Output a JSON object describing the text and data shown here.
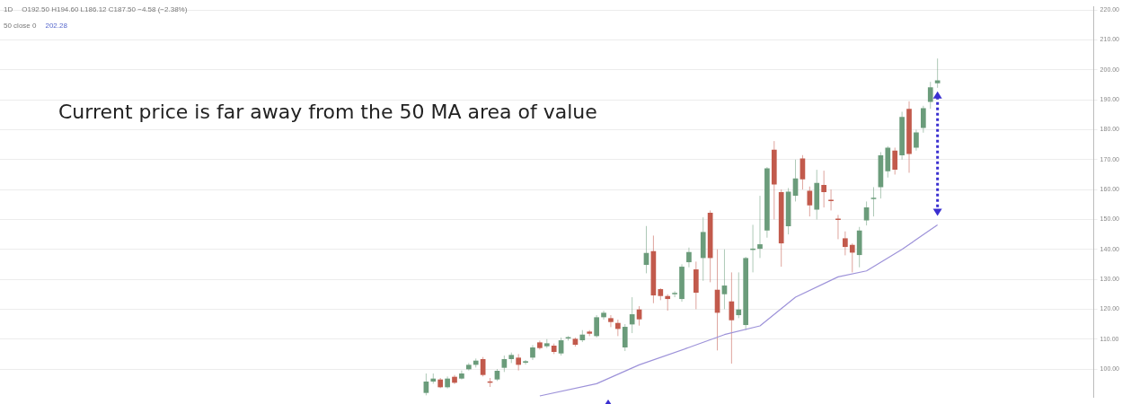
{
  "chart_data": {
    "type": "candlestick",
    "categories": [
      null,
      null,
      null,
      null,
      null,
      null,
      null,
      null,
      null,
      null,
      null,
      null,
      null,
      null,
      null,
      null,
      null,
      null,
      null,
      null,
      null,
      null,
      null,
      null,
      null,
      null,
      null,
      null,
      null,
      null,
      null,
      null,
      null,
      null,
      null,
      null,
      null,
      null,
      null,
      null,
      null,
      null,
      null,
      null,
      null,
      null,
      null,
      null,
      null,
      null,
      null,
      null,
      null,
      null,
      null,
      null,
      null,
      null,
      null,
      null,
      null,
      null,
      null,
      null,
      null,
      null,
      null,
      null,
      null,
      null,
      null,
      null,
      null,
      null,
      null,
      null,
      null,
      null,
      null,
      null,
      null,
      null,
      null,
      null,
      null,
      null,
      null,
      null,
      null,
      null,
      null,
      null,
      null,
      null,
      null,
      null,
      null,
      null,
      null,
      null,
      null,
      null,
      null,
      null,
      null,
      null,
      null,
      null,
      null,
      null,
      null,
      null,
      null,
      null,
      null,
      null,
      null,
      null,
      null,
      null,
      null,
      null,
      null,
      null,
      null,
      null,
      null,
      null,
      null,
      null,
      null,
      null,
      null,
      null,
      null,
      null,
      null,
      null,
      null,
      null,
      null,
      null,
      null,
      null,
      null,
      null,
      null,
      null,
      null,
      null,
      null,
      null,
      null,
      null,
      null
    ],
    "ohlc": [
      null,
      null,
      null,
      null,
      null,
      null,
      null,
      null,
      null,
      null,
      null,
      null,
      null,
      null,
      null,
      null,
      null,
      null,
      null,
      null,
      null,
      null,
      null,
      null,
      null,
      null,
      null,
      null,
      null,
      null,
      null,
      null,
      null,
      null,
      null,
      null,
      null,
      null,
      null,
      null,
      null,
      null,
      null,
      null,
      null,
      null,
      null,
      null,
      null,
      null,
      null,
      null,
      null,
      null,
      null,
      null,
      null,
      null,
      null,
      null,
      [
        92.0,
        98.5,
        91.2,
        95.8
      ],
      [
        95.8,
        98.5,
        95.1,
        96.8
      ],
      [
        96.5,
        97.0,
        93.6,
        93.9
      ],
      [
        93.9,
        97.5,
        93.5,
        96.8
      ],
      [
        97.4,
        98.0,
        95.0,
        95.4
      ],
      [
        96.8,
        99.5,
        96.5,
        98.5
      ],
      [
        99.9,
        102.0,
        99.5,
        101.4
      ],
      [
        101.4,
        103.5,
        100.5,
        102.8
      ],
      [
        103.3,
        104.0,
        97.5,
        98.0
      ],
      [
        95.8,
        97.0,
        94.0,
        95.4
      ],
      [
        96.5,
        100.0,
        96.0,
        99.4
      ],
      [
        100.4,
        104.5,
        99.0,
        103.3
      ],
      [
        103.3,
        105.5,
        102.0,
        104.7
      ],
      [
        103.8,
        105.0,
        99.5,
        101.4
      ],
      [
        102.1,
        103.0,
        101.5,
        102.6
      ],
      [
        103.8,
        108.0,
        103.0,
        107.2
      ],
      [
        108.9,
        109.5,
        106.5,
        107.0
      ],
      [
        107.6,
        110.0,
        107.0,
        108.6
      ],
      [
        107.8,
        108.5,
        105.0,
        105.7
      ],
      [
        105.2,
        110.5,
        104.5,
        109.6
      ],
      [
        110.2,
        111.0,
        109.5,
        110.3
      ],
      [
        110.1,
        110.5,
        107.5,
        108.1
      ],
      [
        109.6,
        113.0,
        109.0,
        111.5
      ],
      [
        112.5,
        113.0,
        111.0,
        111.8
      ],
      [
        111.0,
        118.0,
        110.5,
        117.3
      ],
      [
        117.3,
        119.5,
        116.5,
        118.8
      ],
      [
        117.0,
        118.0,
        114.0,
        115.7
      ],
      [
        115.4,
        116.5,
        111.0,
        113.4
      ],
      [
        107.2,
        115.0,
        106.0,
        114.1
      ],
      [
        114.9,
        124.0,
        112.0,
        118.3
      ],
      [
        119.9,
        121.0,
        114.5,
        116.6
      ],
      [
        134.8,
        147.8,
        132.0,
        138.8
      ],
      [
        139.4,
        144.6,
        122.0,
        124.6
      ],
      [
        126.7,
        127.0,
        123.0,
        124.4
      ],
      [
        124.4,
        125.0,
        119.5,
        123.4
      ],
      [
        125.0,
        126.0,
        124.0,
        125.3
      ],
      [
        123.4,
        135.0,
        122.5,
        134.2
      ],
      [
        135.7,
        140.6,
        134.0,
        139.1
      ],
      [
        133.3,
        135.9,
        120.0,
        125.5
      ],
      [
        137.1,
        150.7,
        129.5,
        145.8
      ],
      [
        152.2,
        153.0,
        129.0,
        137.1
      ],
      [
        126.5,
        140.0,
        106.2,
        118.8
      ],
      [
        125.0,
        140.0,
        120.0,
        127.9
      ],
      [
        122.6,
        132.3,
        101.8,
        116.3
      ],
      [
        118.0,
        132.3,
        117.0,
        119.9
      ],
      [
        114.7,
        137.5,
        113.0,
        137.1
      ],
      [
        139.8,
        148.2,
        132.3,
        140.1
      ],
      [
        140.2,
        157.9,
        137.1,
        141.7
      ],
      [
        146.3,
        167.5,
        143.9,
        167.1
      ],
      [
        173.3,
        176.2,
        150.0,
        161.7
      ],
      [
        159.1,
        160.0,
        134.2,
        142.0
      ],
      [
        147.7,
        160.5,
        145.0,
        159.3
      ],
      [
        157.9,
        170.0,
        156.0,
        163.7
      ],
      [
        170.4,
        171.5,
        160.0,
        163.4
      ],
      [
        159.6,
        161.0,
        151.0,
        154.7
      ],
      [
        153.3,
        166.6,
        150.0,
        162.2
      ],
      [
        161.5,
        166.3,
        154.0,
        159.1
      ],
      [
        156.2,
        160.0,
        153.0,
        156.1
      ],
      [
        149.9,
        151.5,
        143.4,
        149.8
      ],
      [
        143.7,
        146.0,
        138.0,
        140.8
      ],
      [
        141.5,
        142.0,
        132.3,
        138.9
      ],
      [
        138.1,
        147.5,
        134.0,
        146.3
      ],
      [
        149.7,
        156.0,
        148.0,
        154.0
      ],
      [
        156.8,
        160.8,
        151.0,
        156.9
      ],
      [
        160.8,
        172.5,
        157.0,
        171.4
      ],
      [
        166.1,
        174.5,
        164.0,
        174.0
      ],
      [
        173.0,
        174.0,
        165.0,
        166.6
      ],
      [
        171.4,
        186.0,
        170.0,
        184.3
      ],
      [
        187.0,
        189.5,
        165.6,
        171.9
      ],
      [
        174.0,
        180.0,
        173.0,
        179.1
      ],
      [
        180.6,
        188.0,
        179.0,
        187.2
      ],
      [
        189.3,
        196.0,
        187.0,
        194.2
      ],
      [
        195.5,
        203.8,
        194.0,
        196.5
      ],
      null,
      null,
      null,
      null,
      null,
      null,
      null,
      null,
      null,
      null,
      null,
      null,
      null,
      null,
      null,
      null,
      null,
      null,
      null,
      null,
      null,
      null
    ],
    "colors": [
      null,
      null,
      null,
      null,
      null,
      null,
      null,
      null,
      null,
      null,
      null,
      null,
      null,
      null,
      null,
      null,
      null,
      null,
      null,
      null,
      null,
      null,
      null,
      null,
      null,
      null,
      null,
      null,
      null,
      null,
      null,
      null,
      null,
      null,
      null,
      null,
      null,
      null,
      null,
      null,
      null,
      null,
      null,
      null,
      null,
      null,
      null,
      null,
      null,
      null,
      null,
      null,
      null,
      null,
      null,
      null,
      null,
      null,
      null,
      null,
      "#6b9c7b",
      "#6b9c7b",
      "#c25a4c",
      "#6b9c7b",
      "#c25a4c",
      "#6b9c7b",
      "#6b9c7b",
      "#6b9c7b",
      "#c25a4c",
      "#c25a4c",
      "#6b9c7b",
      "#6b9c7b",
      "#6b9c7b",
      "#c25a4c",
      "#6b9c7b",
      "#6b9c7b",
      "#c25a4c",
      "#6b9c7b",
      "#c25a4c",
      "#6b9c7b",
      "#6b9c7b",
      "#c25a4c",
      "#6b9c7b",
      "#c25a4c",
      "#6b9c7b",
      "#6b9c7b",
      "#c25a4c",
      "#c25a4c",
      "#6b9c7b",
      "#6b9c7b",
      "#c25a4c",
      "#6b9c7b",
      "#c25a4c",
      "#c25a4c",
      "#c25a4c",
      "#6b9c7b",
      "#6b9c7b",
      "#6b9c7b",
      "#c25a4c",
      "#6b9c7b",
      "#c25a4c",
      "#c25a4c",
      "#6b9c7b",
      "#c25a4c",
      "#6b9c7b",
      "#6b9c7b",
      "#6b9c7b",
      "#6b9c7b",
      "#6b9c7b",
      "#c25a4c",
      "#c25a4c",
      "#6b9c7b",
      "#6b9c7b",
      "#c25a4c",
      "#c25a4c",
      "#6b9c7b",
      "#c25a4c",
      "#c25a4c",
      "#c25a4c",
      "#c25a4c",
      "#c25a4c",
      "#6b9c7b",
      "#6b9c7b",
      "#6b9c7b",
      "#6b9c7b",
      "#6b9c7b",
      "#c25a4c",
      "#6b9c7b",
      "#c25a4c",
      "#6b9c7b",
      "#6b9c7b",
      "#6b9c7b",
      "#6b9c7b",
      null,
      null,
      null,
      null,
      null,
      null,
      null,
      null,
      null,
      null,
      null,
      null,
      null,
      null,
      null,
      null,
      null,
      null,
      null,
      null,
      null,
      null
    ],
    "series": [
      {
        "type": "line",
        "color": "#9d92d9",
        "values": [
          null,
          null,
          null,
          null,
          null,
          null,
          null,
          null,
          null,
          null,
          null,
          null,
          null,
          null,
          null,
          null,
          null,
          null,
          null,
          null,
          null,
          null,
          null,
          null,
          null,
          null,
          null,
          null,
          null,
          null,
          null,
          null,
          null,
          null,
          null,
          null,
          null,
          null,
          null,
          null,
          null,
          null,
          null,
          null,
          null,
          null,
          null,
          null,
          null,
          null,
          null,
          null,
          null,
          null,
          null,
          null,
          null,
          null,
          null,
          null,
          null,
          null,
          null,
          null,
          null,
          null,
          null,
          null,
          null,
          null,
          null,
          null,
          null,
          null,
          null,
          null,
          91.0,
          null,
          null,
          null,
          null,
          null,
          null,
          null,
          95.1,
          null,
          null,
          null,
          null,
          null,
          101.4,
          null,
          null,
          null,
          null,
          null,
          null,
          107.2,
          null,
          null,
          null,
          null,
          111.5,
          null,
          null,
          null,
          null,
          114.4,
          null,
          null,
          null,
          null,
          124.0,
          null,
          null,
          null,
          null,
          null,
          130.8,
          null,
          null,
          null,
          132.8,
          null,
          null,
          null,
          null,
          140.0,
          null,
          null,
          null,
          null,
          148.2,
          null,
          null,
          null,
          null,
          null,
          null,
          null,
          null,
          null,
          null,
          null,
          null,
          null,
          null,
          null,
          null,
          null,
          null,
          null,
          null,
          null,
          null
        ]
      }
    ],
    "ylim": [
      90.7,
      221.2
    ],
    "yticks": [
      {
        "value": 100,
        "label": "100.00"
      },
      {
        "value": 110,
        "label": "110.00"
      },
      {
        "value": 120,
        "label": "120.00"
      },
      {
        "value": 130,
        "label": "130.00"
      },
      {
        "value": 140,
        "label": "140.00"
      },
      {
        "value": 150,
        "label": "150.00"
      },
      {
        "value": 160,
        "label": "160.00"
      },
      {
        "value": 170,
        "label": "170.00"
      },
      {
        "value": 180,
        "label": "180.00"
      },
      {
        "value": 190,
        "label": "190.00"
      },
      {
        "value": 200,
        "label": "200.00"
      },
      {
        "value": 210,
        "label": "210.00"
      },
      {
        "value": 220,
        "label": "220.00"
      }
    ],
    "tick_labels": "y",
    "grid": "y",
    "legend": false,
    "annotations": [
      "1D",
      "O192.50 H194.60 L186.12 C187.50 −4.58 (−2.38%)",
      "50 close 0",
      "202.28",
      "Current price is far away from the 50 MA area of value"
    ]
  }
}
